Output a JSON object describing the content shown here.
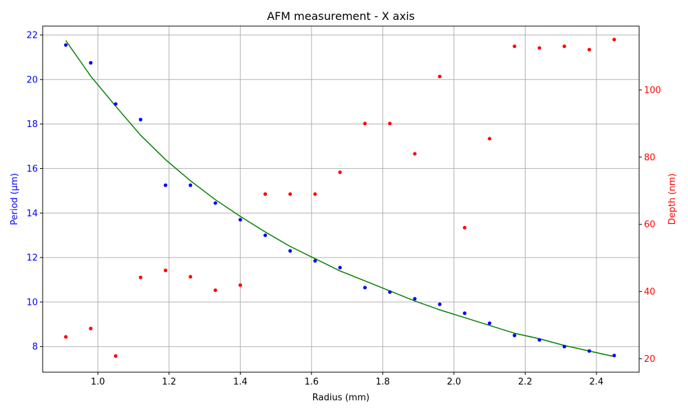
{
  "chart_data": {
    "type": "scatter",
    "title": "AFM measurement - X axis",
    "xlabel": "Radius (mm)",
    "ylabel": "Period (µm)",
    "y2label": "Depth (nm)",
    "xlim": [
      0.845,
      2.52
    ],
    "ylim": [
      6.85,
      22.4
    ],
    "y2lim": [
      16,
      119
    ],
    "x_ticks": [
      "1.0",
      "1.2",
      "1.4",
      "1.6",
      "1.8",
      "2.0",
      "2.2",
      "2.4"
    ],
    "x_tick_values": [
      1.0,
      1.2,
      1.4,
      1.6,
      1.8,
      2.0,
      2.2,
      2.4
    ],
    "y_ticks": [
      "8",
      "10",
      "12",
      "14",
      "16",
      "18",
      "20",
      "22"
    ],
    "y_tick_values": [
      8,
      10,
      12,
      14,
      16,
      18,
      20,
      22
    ],
    "y2_ticks": [
      "20",
      "40",
      "60",
      "80",
      "100"
    ],
    "y2_tick_values": [
      20,
      40,
      60,
      80,
      100
    ],
    "grid": true,
    "colors": {
      "period": "#0000ff",
      "depth": "#ff0000",
      "fit": "#008000",
      "axis": "#000000",
      "grid": "#b0b0b0"
    },
    "x": [
      0.91,
      0.98,
      1.05,
      1.12,
      1.19,
      1.26,
      1.33,
      1.4,
      1.47,
      1.54,
      1.61,
      1.68,
      1.75,
      1.82,
      1.89,
      1.96,
      2.03,
      2.1,
      2.17,
      2.24,
      2.31,
      2.38,
      2.45
    ],
    "series": [
      {
        "axis": "left",
        "style": "points",
        "color": "#0000ff",
        "values": [
          21.55,
          20.75,
          18.9,
          18.2,
          15.25,
          15.25,
          14.45,
          13.7,
          13.0,
          12.3,
          11.85,
          11.55,
          10.65,
          10.45,
          10.15,
          9.9,
          9.5,
          9.05,
          8.5,
          8.3,
          8.0,
          7.8,
          7.6
        ]
      },
      {
        "axis": "right",
        "style": "points",
        "color": "#ff0000",
        "values": [
          26.5,
          29.0,
          20.8,
          44.2,
          46.3,
          44.4,
          40.4,
          41.9,
          69.0,
          69.0,
          69.0,
          75.5,
          90.0,
          90.0,
          81.0,
          104.0,
          59.0,
          85.5,
          113.0,
          112.5,
          113.0,
          112.0,
          115.0
        ]
      },
      {
        "axis": "left",
        "style": "line",
        "color": "#008000",
        "values": [
          21.75,
          20.15,
          18.8,
          17.5,
          16.4,
          15.45,
          14.6,
          13.85,
          13.15,
          12.5,
          11.95,
          11.4,
          10.95,
          10.5,
          10.05,
          9.65,
          9.3,
          8.95,
          8.6,
          8.35,
          8.05,
          7.8,
          7.55
        ]
      }
    ]
  }
}
